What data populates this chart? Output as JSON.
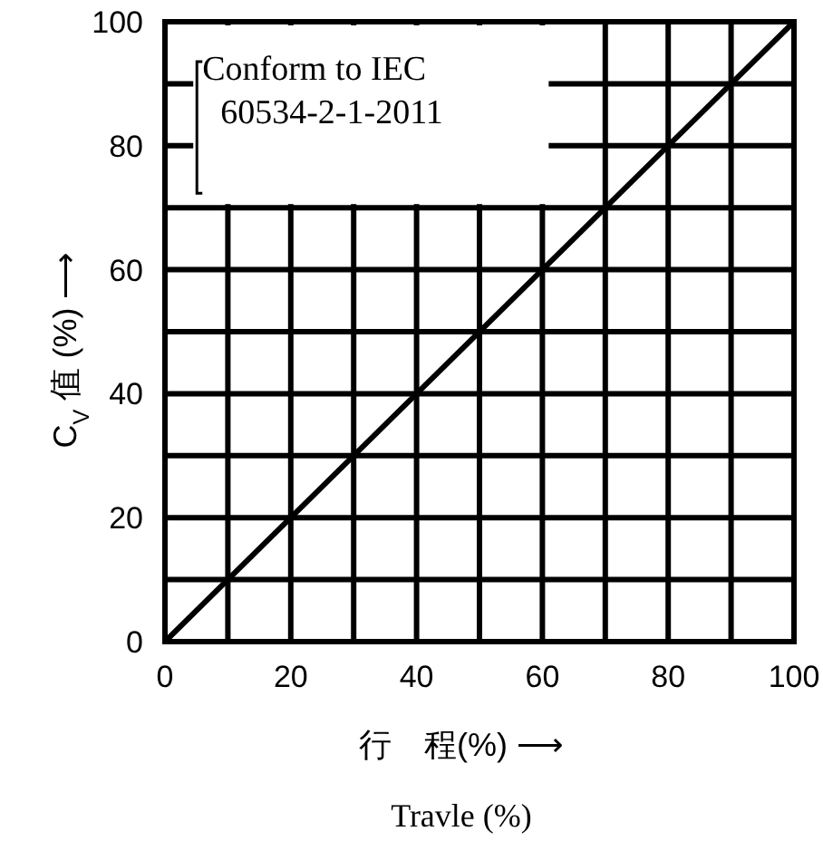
{
  "chart_data": {
    "type": "line",
    "xlabel": "行　程(%) ⟶",
    "ylabel": "C$_{V}$ 值 (%) ⟶",
    "annotations": [
      "Conform to IEC\n60534-2-1-2011",
      "Travle (%)"
    ],
    "series": [
      {
        "color": "#000000",
        "x": [
          0,
          100
        ],
        "values": [
          0,
          100
        ]
      }
    ],
    "xlim": [
      0,
      100
    ],
    "ylim": [
      0,
      100
    ],
    "xticks": [
      0,
      {
        "value": 10,
        "label": null
      },
      20,
      {
        "value": 30,
        "label": null
      },
      40,
      {
        "value": 50,
        "label": null
      },
      60,
      {
        "value": 70,
        "label": null
      },
      80,
      {
        "value": 90,
        "label": null
      },
      100
    ],
    "yticks": [
      0,
      {
        "value": 10,
        "label": null
      },
      20,
      {
        "value": 30,
        "label": null
      },
      40,
      {
        "value": 50,
        "label": null
      },
      60,
      {
        "value": 70,
        "label": null
      },
      80,
      {
        "value": 90,
        "label": null
      },
      100
    ],
    "grid": true,
    "marker": "none",
    "line_style": "solid"
  }
}
